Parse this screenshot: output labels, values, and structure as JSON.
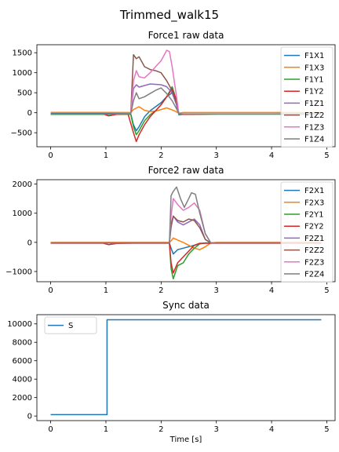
{
  "figure_title": "Trimmed_walk15",
  "colors": {
    "blue": "#1f77b4",
    "orange": "#ff7f0e",
    "green": "#2ca02c",
    "red": "#d62728",
    "purple": "#9467bd",
    "brown": "#8c564b",
    "pink": "#e377c2",
    "gray": "#7f7f7f"
  },
  "chart_data": [
    {
      "type": "line",
      "title": "Force1 raw data",
      "xlabel": "",
      "ylabel": "",
      "xlim": [
        -0.25,
        5.15
      ],
      "ylim": [
        -850,
        1700
      ],
      "xticks": [
        0,
        1,
        2,
        3,
        4,
        5
      ],
      "yticks": [
        -500,
        0,
        500,
        1000,
        1500
      ],
      "grid": false,
      "legend": "top-right",
      "series": [
        {
          "name": "F1X1",
          "color": "#1f77b4",
          "x": [
            0,
            1.0,
            1.45,
            1.5,
            1.55,
            1.6,
            1.7,
            1.8,
            1.9,
            2.0,
            2.1,
            2.2,
            2.28,
            2.32,
            2.4,
            3.0,
            4.0,
            4.9
          ],
          "y": [
            -20,
            -20,
            -25,
            -300,
            -450,
            -350,
            -100,
            50,
            150,
            250,
            400,
            500,
            200,
            -50,
            -40,
            -30,
            -30,
            -25
          ]
        },
        {
          "name": "F1X3",
          "color": "#ff7f0e",
          "x": [
            0,
            1.0,
            1.45,
            1.5,
            1.6,
            1.7,
            1.8,
            1.9,
            2.0,
            2.1,
            2.2,
            2.28,
            2.32,
            2.4,
            3.0,
            4.0,
            4.9
          ],
          "y": [
            10,
            10,
            5,
            80,
            150,
            60,
            30,
            40,
            80,
            120,
            70,
            20,
            -10,
            5,
            5,
            5,
            5
          ]
        },
        {
          "name": "F1Y1",
          "color": "#2ca02c",
          "x": [
            0,
            1.0,
            1.45,
            1.5,
            1.55,
            1.6,
            1.7,
            1.8,
            1.9,
            2.0,
            2.1,
            2.2,
            2.28,
            2.32,
            2.4,
            3.0,
            4.0,
            4.9
          ],
          "y": [
            -40,
            -40,
            -40,
            -350,
            -550,
            -450,
            -200,
            -50,
            50,
            200,
            400,
            650,
            300,
            -20,
            -40,
            -35,
            -35,
            -35
          ]
        },
        {
          "name": "F1Y2",
          "color": "#d62728",
          "x": [
            0,
            0.95,
            1.05,
            1.2,
            1.4,
            1.5,
            1.55,
            1.6,
            1.7,
            1.8,
            1.9,
            2.0,
            2.1,
            2.2,
            2.28,
            2.32,
            2.4,
            3.0,
            4.0,
            4.9
          ],
          "y": [
            -30,
            -30,
            -80,
            -40,
            -30,
            -500,
            -720,
            -550,
            -300,
            -100,
            50,
            200,
            400,
            600,
            300,
            -30,
            -40,
            -30,
            -30,
            -30
          ]
        },
        {
          "name": "F1Z1",
          "color": "#9467bd",
          "x": [
            0,
            1.0,
            1.45,
            1.5,
            1.55,
            1.6,
            1.7,
            1.8,
            1.9,
            2.0,
            2.1,
            2.2,
            2.28,
            2.32,
            2.4,
            3.0,
            4.0,
            4.9
          ],
          "y": [
            -30,
            -30,
            -30,
            600,
            700,
            640,
            680,
            720,
            710,
            700,
            650,
            500,
            200,
            -30,
            -30,
            -30,
            -30,
            -30
          ]
        },
        {
          "name": "F1Z2",
          "color": "#8c564b",
          "x": [
            0,
            1.0,
            1.45,
            1.5,
            1.55,
            1.6,
            1.7,
            1.8,
            1.9,
            2.0,
            2.1,
            2.2,
            2.28,
            2.32,
            2.4,
            3.0,
            4.0,
            4.9
          ],
          "y": [
            -30,
            -30,
            -30,
            1450,
            1350,
            1400,
            1150,
            1080,
            1050,
            1000,
            800,
            550,
            250,
            -30,
            -30,
            -30,
            -30,
            -30
          ]
        },
        {
          "name": "F1Z3",
          "color": "#e377c2",
          "x": [
            0,
            1.0,
            1.45,
            1.5,
            1.55,
            1.6,
            1.7,
            1.8,
            1.9,
            2.0,
            2.1,
            2.15,
            2.2,
            2.28,
            2.32,
            2.4,
            3.0,
            4.0,
            4.9
          ],
          "y": [
            -30,
            -30,
            -30,
            800,
            1050,
            900,
            870,
            1000,
            1150,
            1300,
            1560,
            1530,
            1150,
            400,
            -30,
            -30,
            -30,
            -30,
            -30
          ]
        },
        {
          "name": "F1Z4",
          "color": "#7f7f7f",
          "x": [
            0,
            1.0,
            1.45,
            1.5,
            1.55,
            1.6,
            1.7,
            1.8,
            1.9,
            2.0,
            2.1,
            2.2,
            2.28,
            2.32,
            2.4,
            3.0,
            4.0,
            4.9
          ],
          "y": [
            -30,
            -30,
            -30,
            300,
            500,
            350,
            400,
            480,
            560,
            620,
            480,
            300,
            100,
            -30,
            -30,
            -30,
            -30,
            -30
          ]
        }
      ]
    },
    {
      "type": "line",
      "title": "Force2 raw data",
      "xlabel": "",
      "ylabel": "",
      "xlim": [
        -0.25,
        5.15
      ],
      "ylim": [
        -1350,
        2150
      ],
      "xticks": [
        0,
        1,
        2,
        3,
        4,
        5
      ],
      "yticks": [
        -1000,
        0,
        1000,
        2000
      ],
      "grid": false,
      "legend": "top-right",
      "series": [
        {
          "name": "F2X1",
          "color": "#1f77b4",
          "x": [
            0,
            1.0,
            1.5,
            2.15,
            2.18,
            2.22,
            2.3,
            2.4,
            2.5,
            2.6,
            2.7,
            2.8,
            2.9,
            3.0,
            4.0,
            4.9
          ],
          "y": [
            -20,
            -20,
            -20,
            -20,
            -200,
            -400,
            -250,
            -200,
            -150,
            -100,
            -50,
            -20,
            -20,
            -20,
            -20,
            -20
          ]
        },
        {
          "name": "F2X3",
          "color": "#ff7f0e",
          "x": [
            0,
            1.0,
            1.5,
            2.15,
            2.18,
            2.22,
            2.3,
            2.4,
            2.5,
            2.6,
            2.7,
            2.8,
            2.9,
            3.0,
            4.0,
            4.9
          ],
          "y": [
            0,
            0,
            0,
            0,
            50,
            150,
            80,
            0,
            -100,
            -200,
            -250,
            -150,
            -20,
            0,
            0,
            0
          ]
        },
        {
          "name": "F2Y1",
          "color": "#2ca02c",
          "x": [
            0,
            1.0,
            1.5,
            2.15,
            2.18,
            2.22,
            2.3,
            2.4,
            2.5,
            2.6,
            2.7,
            2.8,
            2.9,
            3.0,
            4.0,
            4.9
          ],
          "y": [
            -20,
            -20,
            -20,
            -20,
            -900,
            -1250,
            -800,
            -700,
            -400,
            -200,
            -50,
            -20,
            -20,
            -20,
            -20,
            -20
          ]
        },
        {
          "name": "F2Y2",
          "color": "#d62728",
          "x": [
            0,
            0.95,
            1.05,
            1.2,
            1.5,
            2.15,
            2.18,
            2.22,
            2.3,
            2.4,
            2.5,
            2.6,
            2.7,
            2.8,
            2.9,
            3.0,
            4.0,
            4.9
          ],
          "y": [
            -30,
            -30,
            -80,
            -40,
            -30,
            -30,
            -700,
            -1050,
            -700,
            -500,
            -300,
            -100,
            -30,
            -30,
            -30,
            -30,
            -30,
            -30
          ]
        },
        {
          "name": "F2Z1",
          "color": "#9467bd",
          "x": [
            0,
            1.0,
            1.5,
            2.15,
            2.18,
            2.22,
            2.3,
            2.4,
            2.5,
            2.6,
            2.7,
            2.8,
            2.9,
            3.0,
            4.0,
            4.9
          ],
          "y": [
            -20,
            -20,
            -20,
            -20,
            500,
            900,
            700,
            600,
            700,
            800,
            600,
            100,
            -20,
            -20,
            -20,
            -20
          ]
        },
        {
          "name": "F2Z2",
          "color": "#8c564b",
          "x": [
            0,
            1.0,
            1.5,
            2.15,
            2.18,
            2.22,
            2.3,
            2.4,
            2.5,
            2.6,
            2.7,
            2.8,
            2.9,
            3.0,
            4.0,
            4.9
          ],
          "y": [
            -20,
            -20,
            -20,
            -20,
            600,
            900,
            750,
            700,
            800,
            750,
            500,
            100,
            -20,
            -20,
            -20,
            -20
          ]
        },
        {
          "name": "F2Z3",
          "color": "#e377c2",
          "x": [
            0,
            1.0,
            1.5,
            2.15,
            2.18,
            2.22,
            2.3,
            2.4,
            2.5,
            2.6,
            2.7,
            2.8,
            2.9,
            3.0,
            4.0,
            4.9
          ],
          "y": [
            -20,
            -20,
            -20,
            -20,
            900,
            1500,
            1300,
            1100,
            1200,
            1350,
            1100,
            300,
            -20,
            -20,
            -20,
            -20
          ]
        },
        {
          "name": "F2Z4",
          "color": "#7f7f7f",
          "x": [
            0,
            1.0,
            1.5,
            2.15,
            2.18,
            2.22,
            2.28,
            2.35,
            2.42,
            2.5,
            2.55,
            2.62,
            2.7,
            2.8,
            2.9,
            3.0,
            4.0,
            4.9
          ],
          "y": [
            -20,
            -20,
            -20,
            -20,
            1600,
            1750,
            1900,
            1500,
            1200,
            1500,
            1700,
            1650,
            1000,
            300,
            -20,
            -20,
            -20,
            -20
          ]
        }
      ]
    },
    {
      "type": "line",
      "title": "Sync data",
      "xlabel": "Time [s]",
      "ylabel": "",
      "xlim": [
        -0.25,
        5.15
      ],
      "ylim": [
        -500,
        11000
      ],
      "xticks": [
        0,
        1,
        2,
        3,
        4,
        5
      ],
      "yticks": [
        0,
        2000,
        4000,
        6000,
        8000,
        10000
      ],
      "grid": false,
      "legend": "top-left",
      "series": [
        {
          "name": "S",
          "color": "#1f77b4",
          "x": [
            0,
            1.02,
            1.02,
            4.9
          ],
          "y": [
            150,
            150,
            10450,
            10450
          ]
        }
      ]
    }
  ]
}
